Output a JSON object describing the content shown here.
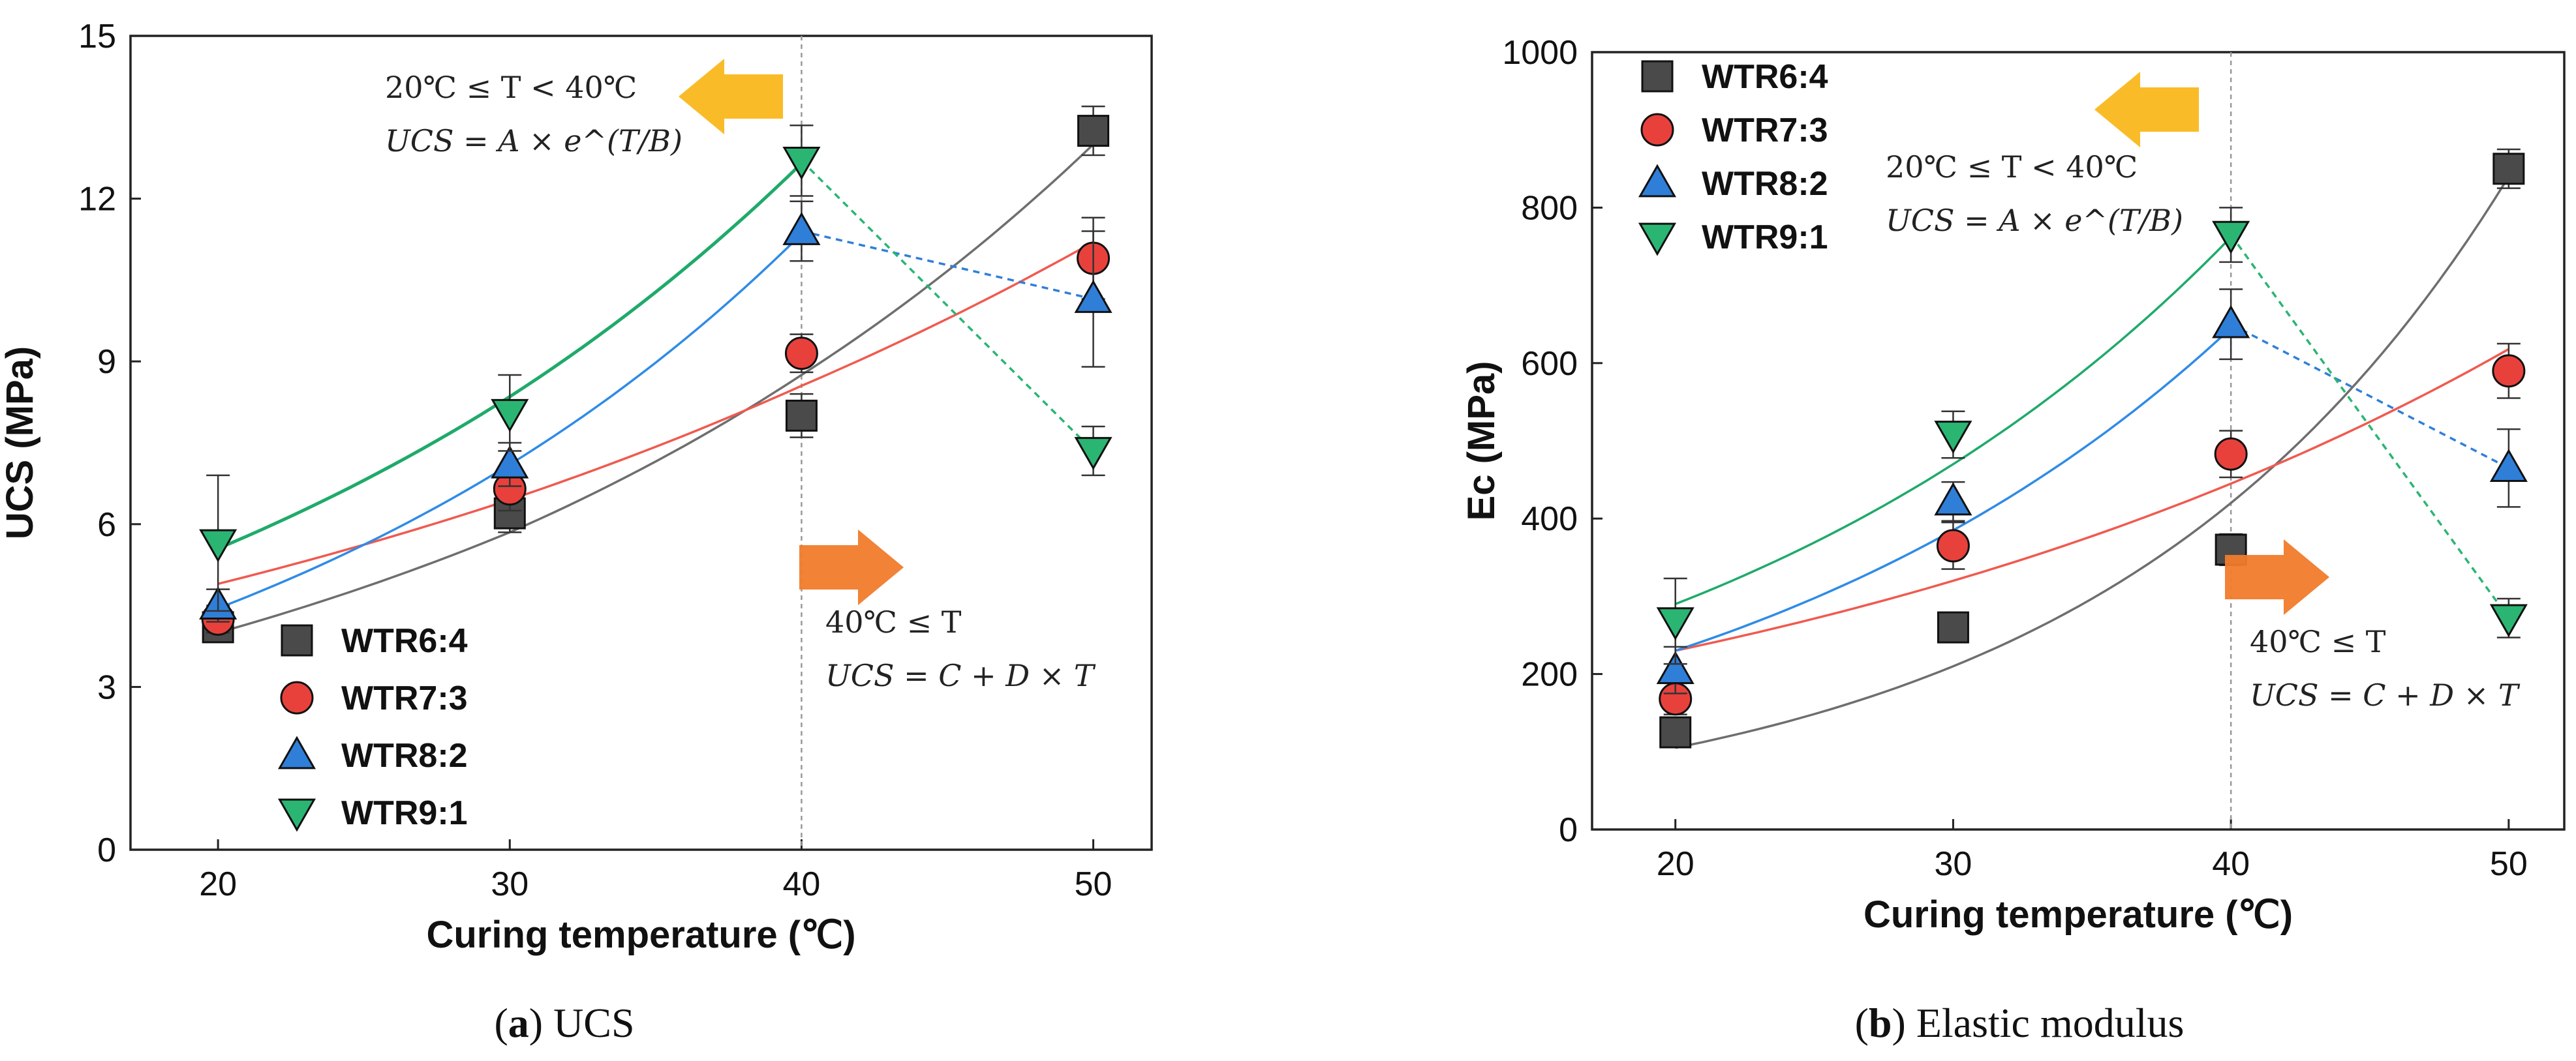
{
  "chart_data": [
    {
      "type": "scatter",
      "ylabel": "UCS (MPa)",
      "xlabel": "Curing temperature (℃)",
      "xlim": [
        17,
        52
      ],
      "ylim": [
        0,
        15
      ],
      "xticks": [
        20,
        30,
        40,
        50
      ],
      "yticks": [
        0,
        3,
        6,
        9,
        12,
        15
      ],
      "x": [
        20,
        30,
        40,
        50
      ],
      "legend_position": "bottom-left",
      "vertical_reference_x": 40,
      "series": [
        {
          "name": "WTR6:4",
          "marker": "square",
          "color": "#4a4a4a",
          "values": [
            4.1,
            6.2,
            8.0,
            13.25
          ],
          "errors": [
            0.25,
            0.35,
            0.4,
            0.45
          ],
          "fit": {
            "type": "exponential",
            "points": [
              [
                20,
                4.0
              ],
              [
                30,
                5.85
              ],
              [
                40,
                8.75
              ],
              [
                50,
                13.0
              ]
            ],
            "color": "#6e6e6e"
          }
        },
        {
          "name": "WTR7:3",
          "marker": "circle",
          "color": "#e8413c",
          "values": [
            4.25,
            6.65,
            9.15,
            10.9
          ],
          "errors": [
            0.25,
            0.4,
            0.35,
            0.75
          ],
          "fit": {
            "type": "exponential",
            "points": [
              [
                20,
                4.9
              ],
              [
                30,
                6.45
              ],
              [
                40,
                8.55
              ],
              [
                50,
                11.2
              ]
            ],
            "color": "#f05a4f"
          }
        },
        {
          "name": "WTR8:2",
          "marker": "triangle-up",
          "color": "#2f7fd9",
          "values": [
            4.5,
            7.1,
            11.4,
            10.15
          ],
          "errors": [
            0.3,
            0.4,
            0.55,
            1.25
          ],
          "fit": {
            "type": "exponential",
            "points": [
              [
                20,
                4.45
              ],
              [
                30,
                7.1
              ],
              [
                40,
                11.35
              ]
            ],
            "color": "#2f8be6"
          },
          "segment": {
            "type": "dashed",
            "points": [
              [
                40,
                11.4
              ],
              [
                50,
                10.15
              ]
            ]
          }
        },
        {
          "name": "WTR9:1",
          "marker": "triangle-down",
          "color": "#2bb573",
          "values": [
            5.65,
            8.05,
            12.7,
            7.35
          ],
          "errors": [
            1.25,
            0.7,
            0.65,
            0.45
          ],
          "fit": {
            "type": "exponential",
            "points": [
              [
                20,
                5.55
              ],
              [
                30,
                8.35
              ],
              [
                40,
                12.65
              ]
            ],
            "color": "#1faa6a"
          },
          "segment": {
            "type": "dashed",
            "points": [
              [
                40,
                12.7
              ],
              [
                50,
                7.35
              ]
            ]
          }
        }
      ],
      "annotations": [
        {
          "formula_lines": [
            "20℃ ≤ T < 40℃",
            "UCS = A × e^(T/B)"
          ],
          "arrow": "left",
          "arrow_color": "#f9b81c"
        },
        {
          "formula_lines": [
            "40℃ ≤ T",
            "UCS = C + D × T"
          ],
          "arrow": "right",
          "arrow_color": "#f17b2a"
        }
      ],
      "caption": {
        "letter": "a",
        "text": "UCS"
      }
    },
    {
      "type": "scatter",
      "ylabel": "Ec (MPa)",
      "xlabel": "Curing temperature (℃)",
      "xlim": [
        17,
        52
      ],
      "ylim": [
        0,
        1000
      ],
      "xticks": [
        20,
        30,
        40,
        50
      ],
      "yticks": [
        0,
        200,
        400,
        600,
        800,
        1000
      ],
      "x": [
        20,
        30,
        40,
        50
      ],
      "legend_position": "top-left",
      "vertical_reference_x": 40,
      "series": [
        {
          "name": "WTR6:4",
          "marker": "square",
          "color": "#4a4a4a",
          "values": [
            125,
            260,
            360,
            850
          ],
          "errors": [
            15,
            15,
            20,
            25
          ],
          "fit": {
            "type": "exponential",
            "points": [
              [
                20,
                105
              ],
              [
                30,
                210
              ],
              [
                40,
                420
              ],
              [
                50,
                840
              ]
            ],
            "color": "#6e6e6e"
          }
        },
        {
          "name": "WTR7:3",
          "marker": "circle",
          "color": "#e8413c",
          "values": [
            168,
            365,
            483,
            590
          ],
          "errors": [
            20,
            30,
            30,
            35
          ],
          "fit": {
            "type": "exponential",
            "points": [
              [
                20,
                230
              ],
              [
                30,
                320
              ],
              [
                40,
                445
              ],
              [
                50,
                618
              ]
            ],
            "color": "#f05a4f"
          }
        },
        {
          "name": "WTR8:2",
          "marker": "triangle-up",
          "color": "#2f7fd9",
          "values": [
            205,
            422,
            650,
            465
          ],
          "errors": [
            30,
            25,
            45,
            50
          ],
          "fit": {
            "type": "exponential",
            "points": [
              [
                20,
                230
              ],
              [
                30,
                385
              ],
              [
                40,
                645
              ]
            ],
            "color": "#2f8be6"
          },
          "segment": {
            "type": "dashed",
            "points": [
              [
                40,
                650
              ],
              [
                50,
                465
              ]
            ]
          }
        },
        {
          "name": "WTR9:1",
          "marker": "triangle-down",
          "color": "#2bb573",
          "values": [
            268,
            508,
            765,
            272
          ],
          "errors": [
            55,
            30,
            35,
            25
          ],
          "fit": {
            "type": "exponential",
            "points": [
              [
                20,
                290
              ],
              [
                30,
                470
              ],
              [
                40,
                762
              ]
            ],
            "color": "#1faa6a"
          },
          "segment": {
            "type": "dashed",
            "points": [
              [
                40,
                765
              ],
              [
                50,
                272
              ]
            ]
          }
        }
      ],
      "annotations": [
        {
          "formula_lines": [
            "20℃ ≤ T < 40℃",
            "UCS = A × e^(T/B)"
          ],
          "arrow": "left",
          "arrow_color": "#f9b81c"
        },
        {
          "formula_lines": [
            "40℃ ≤ T",
            "UCS = C + D × T"
          ],
          "arrow": "right",
          "arrow_color": "#f17b2a"
        }
      ],
      "caption": {
        "letter": "b",
        "text": "Elastic modulus"
      }
    }
  ]
}
